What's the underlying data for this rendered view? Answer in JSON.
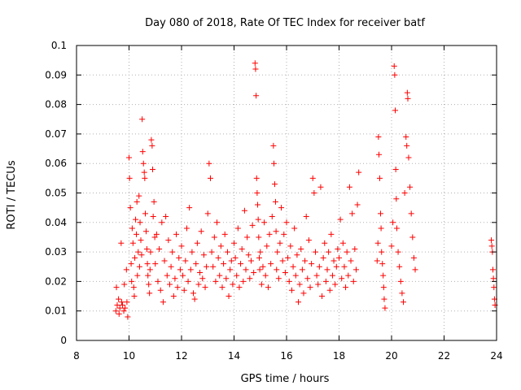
{
  "chart_data": {
    "type": "scatter",
    "title": "Day 080 of 2018, Rate Of TEC Index for receiver batf",
    "xlabel": "GPS time / hours",
    "ylabel": "ROTI / TECUs",
    "xlim": [
      8,
      24
    ],
    "ylim": [
      0,
      0.1
    ],
    "xticks": [
      8,
      10,
      12,
      14,
      16,
      18,
      20,
      22,
      24
    ],
    "yticks": [
      0,
      0.01,
      0.02,
      0.03,
      0.04,
      0.05,
      0.06,
      0.07,
      0.08,
      0.09,
      0.1
    ],
    "xtick_labels": [
      "8",
      "10",
      "12",
      "14",
      "16",
      "18",
      "20",
      "22",
      "24"
    ],
    "ytick_labels": [
      "0",
      "0.01",
      "0.02",
      "0.03",
      "0.04",
      "0.05",
      "0.06",
      "0.07",
      "0.08",
      "0.09",
      "0.1"
    ],
    "grid": true,
    "marker": "plus",
    "color": "#ff0000",
    "series": [
      {
        "points": [
          [
            9.5,
            0.01
          ],
          [
            9.52,
            0.018
          ],
          [
            9.55,
            0.012
          ],
          [
            9.6,
            0.014
          ],
          [
            9.62,
            0.009
          ],
          [
            9.65,
            0.011
          ],
          [
            9.7,
            0.033
          ],
          [
            9.72,
            0.013
          ],
          [
            9.75,
            0.012
          ],
          [
            9.8,
            0.01
          ],
          [
            9.82,
            0.019
          ],
          [
            9.85,
            0.011
          ],
          [
            9.9,
            0.024
          ],
          [
            9.92,
            0.013
          ],
          [
            9.95,
            0.008
          ],
          [
            10.0,
            0.062
          ],
          [
            10.02,
            0.055
          ],
          [
            10.05,
            0.045
          ],
          [
            10.08,
            0.026
          ],
          [
            10.1,
            0.02
          ],
          [
            10.12,
            0.038
          ],
          [
            10.15,
            0.033
          ],
          [
            10.18,
            0.018
          ],
          [
            10.2,
            0.015
          ],
          [
            10.22,
            0.028
          ],
          [
            10.25,
            0.041
          ],
          [
            10.28,
            0.036
          ],
          [
            10.3,
            0.047
          ],
          [
            10.32,
            0.022
          ],
          [
            10.35,
            0.03
          ],
          [
            10.38,
            0.049
          ],
          [
            10.4,
            0.025
          ],
          [
            10.42,
            0.04
          ],
          [
            10.45,
            0.034
          ],
          [
            10.48,
            0.029
          ],
          [
            10.5,
            0.075
          ],
          [
            10.52,
            0.064
          ],
          [
            10.55,
            0.06
          ],
          [
            10.58,
            0.057
          ],
          [
            10.6,
            0.055
          ],
          [
            10.62,
            0.043
          ],
          [
            10.65,
            0.037
          ],
          [
            10.68,
            0.031
          ],
          [
            10.7,
            0.026
          ],
          [
            10.72,
            0.022
          ],
          [
            10.75,
            0.019
          ],
          [
            10.78,
            0.016
          ],
          [
            10.8,
            0.024
          ],
          [
            10.82,
            0.03
          ],
          [
            10.85,
            0.068
          ],
          [
            10.88,
            0.066
          ],
          [
            10.9,
            0.058
          ],
          [
            10.92,
            0.042
          ],
          [
            10.95,
            0.047
          ],
          [
            10.98,
            0.035
          ],
          [
            11.0,
            0.026
          ],
          [
            11.05,
            0.036
          ],
          [
            11.1,
            0.02
          ],
          [
            11.15,
            0.031
          ],
          [
            11.2,
            0.017
          ],
          [
            11.25,
            0.04
          ],
          [
            11.3,
            0.013
          ],
          [
            11.35,
            0.027
          ],
          [
            11.4,
            0.042
          ],
          [
            11.45,
            0.022
          ],
          [
            11.5,
            0.034
          ],
          [
            11.55,
            0.019
          ],
          [
            11.6,
            0.025
          ],
          [
            11.65,
            0.03
          ],
          [
            11.7,
            0.015
          ],
          [
            11.75,
            0.021
          ],
          [
            11.8,
            0.036
          ],
          [
            11.85,
            0.018
          ],
          [
            11.9,
            0.028
          ],
          [
            11.95,
            0.024
          ],
          [
            12.0,
            0.032
          ],
          [
            12.05,
            0.022
          ],
          [
            12.1,
            0.017
          ],
          [
            12.15,
            0.027
          ],
          [
            12.2,
            0.038
          ],
          [
            12.25,
            0.02
          ],
          [
            12.3,
            0.045
          ],
          [
            12.35,
            0.024
          ],
          [
            12.4,
            0.03
          ],
          [
            12.45,
            0.016
          ],
          [
            12.5,
            0.014
          ],
          [
            12.55,
            0.026
          ],
          [
            12.6,
            0.033
          ],
          [
            12.65,
            0.019
          ],
          [
            12.7,
            0.023
          ],
          [
            12.75,
            0.037
          ],
          [
            12.8,
            0.021
          ],
          [
            12.85,
            0.029
          ],
          [
            12.9,
            0.018
          ],
          [
            12.95,
            0.025
          ],
          [
            13.0,
            0.043
          ],
          [
            13.05,
            0.06
          ],
          [
            13.1,
            0.055
          ],
          [
            13.15,
            0.03
          ],
          [
            13.2,
            0.025
          ],
          [
            13.25,
            0.035
          ],
          [
            13.3,
            0.02
          ],
          [
            13.35,
            0.04
          ],
          [
            13.4,
            0.028
          ],
          [
            13.45,
            0.022
          ],
          [
            13.5,
            0.032
          ],
          [
            13.55,
            0.018
          ],
          [
            13.6,
            0.026
          ],
          [
            13.65,
            0.036
          ],
          [
            13.7,
            0.021
          ],
          [
            13.75,
            0.03
          ],
          [
            13.8,
            0.015
          ],
          [
            13.85,
            0.024
          ],
          [
            13.9,
            0.027
          ],
          [
            13.95,
            0.019
          ],
          [
            14.0,
            0.033
          ],
          [
            14.05,
            0.028
          ],
          [
            14.1,
            0.022
          ],
          [
            14.15,
            0.038
          ],
          [
            14.2,
            0.018
          ],
          [
            14.25,
            0.026
          ],
          [
            14.3,
            0.031
          ],
          [
            14.35,
            0.02
          ],
          [
            14.4,
            0.044
          ],
          [
            14.45,
            0.024
          ],
          [
            14.5,
            0.035
          ],
          [
            14.55,
            0.029
          ],
          [
            14.6,
            0.021
          ],
          [
            14.65,
            0.027
          ],
          [
            14.7,
            0.039
          ],
          [
            14.75,
            0.023
          ],
          [
            14.8,
            0.094
          ],
          [
            14.82,
            0.092
          ],
          [
            14.84,
            0.083
          ],
          [
            14.86,
            0.055
          ],
          [
            14.88,
            0.05
          ],
          [
            14.9,
            0.046
          ],
          [
            14.92,
            0.041
          ],
          [
            14.94,
            0.035
          ],
          [
            14.96,
            0.028
          ],
          [
            14.98,
            0.024
          ],
          [
            15.0,
            0.03
          ],
          [
            15.05,
            0.019
          ],
          [
            15.1,
            0.025
          ],
          [
            15.15,
            0.04
          ],
          [
            15.2,
            0.022
          ],
          [
            15.25,
            0.032
          ],
          [
            15.3,
            0.018
          ],
          [
            15.35,
            0.036
          ],
          [
            15.4,
            0.026
          ],
          [
            15.45,
            0.042
          ],
          [
            15.5,
            0.066
          ],
          [
            15.52,
            0.06
          ],
          [
            15.55,
            0.053
          ],
          [
            15.58,
            0.047
          ],
          [
            15.6,
            0.037
          ],
          [
            15.62,
            0.024
          ],
          [
            15.65,
            0.03
          ],
          [
            15.7,
            0.021
          ],
          [
            15.75,
            0.033
          ],
          [
            15.8,
            0.045
          ],
          [
            15.85,
            0.027
          ],
          [
            15.9,
            0.036
          ],
          [
            15.95,
            0.023
          ],
          [
            16.0,
            0.04
          ],
          [
            16.05,
            0.028
          ],
          [
            16.1,
            0.02
          ],
          [
            16.15,
            0.032
          ],
          [
            16.2,
            0.017
          ],
          [
            16.25,
            0.025
          ],
          [
            16.3,
            0.038
          ],
          [
            16.35,
            0.022
          ],
          [
            16.4,
            0.029
          ],
          [
            16.45,
            0.013
          ],
          [
            16.5,
            0.019
          ],
          [
            16.55,
            0.031
          ],
          [
            16.6,
            0.024
          ],
          [
            16.65,
            0.016
          ],
          [
            16.7,
            0.027
          ],
          [
            16.75,
            0.042
          ],
          [
            16.8,
            0.021
          ],
          [
            16.85,
            0.034
          ],
          [
            16.9,
            0.018
          ],
          [
            16.95,
            0.026
          ],
          [
            17.0,
            0.055
          ],
          [
            17.05,
            0.05
          ],
          [
            17.1,
            0.03
          ],
          [
            17.15,
            0.022
          ],
          [
            17.2,
            0.019
          ],
          [
            17.25,
            0.025
          ],
          [
            17.3,
            0.052
          ],
          [
            17.35,
            0.015
          ],
          [
            17.4,
            0.028
          ],
          [
            17.45,
            0.033
          ],
          [
            17.5,
            0.02
          ],
          [
            17.55,
            0.024
          ],
          [
            17.6,
            0.03
          ],
          [
            17.65,
            0.017
          ],
          [
            17.7,
            0.036
          ],
          [
            17.75,
            0.022
          ],
          [
            17.8,
            0.027
          ],
          [
            17.85,
            0.019
          ],
          [
            17.9,
            0.025
          ],
          [
            17.95,
            0.031
          ],
          [
            18.0,
            0.028
          ],
          [
            18.05,
            0.041
          ],
          [
            18.1,
            0.021
          ],
          [
            18.15,
            0.033
          ],
          [
            18.2,
            0.025
          ],
          [
            18.25,
            0.018
          ],
          [
            18.3,
            0.03
          ],
          [
            18.35,
            0.022
          ],
          [
            18.4,
            0.052
          ],
          [
            18.45,
            0.027
          ],
          [
            18.5,
            0.043
          ],
          [
            18.55,
            0.02
          ],
          [
            18.6,
            0.031
          ],
          [
            18.65,
            0.024
          ],
          [
            18.7,
            0.046
          ],
          [
            18.75,
            0.057
          ],
          [
            19.45,
            0.027
          ],
          [
            19.48,
            0.033
          ],
          [
            19.5,
            0.069
          ],
          [
            19.52,
            0.063
          ],
          [
            19.55,
            0.055
          ],
          [
            19.58,
            0.043
          ],
          [
            19.6,
            0.038
          ],
          [
            19.62,
            0.03
          ],
          [
            19.65,
            0.026
          ],
          [
            19.68,
            0.022
          ],
          [
            19.7,
            0.018
          ],
          [
            19.72,
            0.014
          ],
          [
            19.75,
            0.011
          ],
          [
            20.0,
            0.032
          ],
          [
            20.05,
            0.04
          ],
          [
            20.1,
            0.093
          ],
          [
            20.12,
            0.09
          ],
          [
            20.14,
            0.078
          ],
          [
            20.16,
            0.058
          ],
          [
            20.18,
            0.048
          ],
          [
            20.2,
            0.038
          ],
          [
            20.25,
            0.03
          ],
          [
            20.3,
            0.025
          ],
          [
            20.35,
            0.02
          ],
          [
            20.4,
            0.016
          ],
          [
            20.45,
            0.013
          ],
          [
            20.5,
            0.05
          ],
          [
            20.55,
            0.069
          ],
          [
            20.58,
            0.066
          ],
          [
            20.6,
            0.084
          ],
          [
            20.62,
            0.082
          ],
          [
            20.65,
            0.062
          ],
          [
            20.7,
            0.052
          ],
          [
            20.75,
            0.043
          ],
          [
            20.8,
            0.035
          ],
          [
            20.85,
            0.028
          ],
          [
            20.9,
            0.024
          ],
          [
            23.8,
            0.034
          ],
          [
            23.82,
            0.032
          ],
          [
            23.84,
            0.03
          ],
          [
            23.86,
            0.024
          ],
          [
            23.88,
            0.021
          ],
          [
            23.9,
            0.018
          ],
          [
            23.92,
            0.014
          ],
          [
            23.94,
            0.012
          ]
        ]
      }
    ]
  }
}
